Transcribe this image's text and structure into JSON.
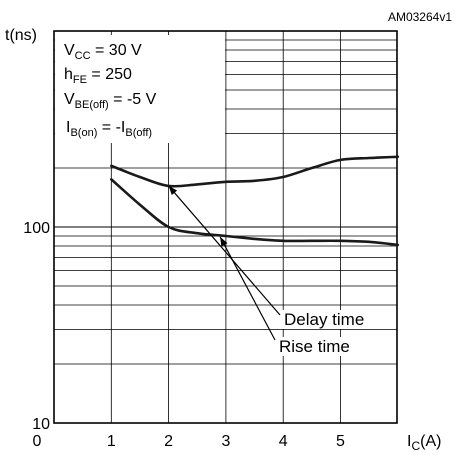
{
  "figure_id": "AM03264v1",
  "chart_data": {
    "type": "line",
    "title": "",
    "xlabel": {
      "main": "I",
      "sub": "C",
      "unit": "(A)"
    },
    "ylabel": "t(ns)",
    "xlim": [
      0,
      6.2
    ],
    "ylim": [
      10,
      1000
    ],
    "y_scale": "log",
    "grid": true,
    "x_ticks": [
      0,
      1,
      2,
      3,
      4,
      5
    ],
    "y_tick_labels": [
      {
        "value": 10,
        "label": "10"
      },
      {
        "value": 100,
        "label": "100"
      }
    ],
    "conditions": [
      {
        "main": "V",
        "sub": "CC",
        "rest": " = 30 V"
      },
      {
        "main": "h",
        "sub": "FE",
        "rest": " = 250"
      },
      {
        "main": "V",
        "sub": "BE(off)",
        "rest": " = -5 V"
      },
      {
        "main": "I",
        "sub": "B(on)",
        "rest": " = -I",
        "sub2": "B(off)"
      }
    ],
    "series": [
      {
        "name": "Delay time",
        "x": [
          1,
          1.5,
          2,
          2.5,
          3,
          3.5,
          4,
          4.5,
          5,
          5.5,
          6
        ],
        "y": [
          205,
          180,
          162,
          165,
          170,
          172,
          180,
          200,
          220,
          225,
          228
        ]
      },
      {
        "name": "Rise time",
        "x": [
          1,
          1.5,
          2,
          2.5,
          3,
          3.5,
          4,
          4.5,
          5,
          5.5,
          6
        ],
        "y": [
          175,
          130,
          100,
          93,
          90,
          87,
          85,
          85,
          85,
          84,
          81
        ]
      }
    ],
    "annotations": [
      {
        "text": "Delay time",
        "points_to": {
          "x": 2,
          "y": 162
        }
      },
      {
        "text": "Rise time",
        "points_to": {
          "x": 2.9,
          "y": 89
        }
      }
    ]
  }
}
